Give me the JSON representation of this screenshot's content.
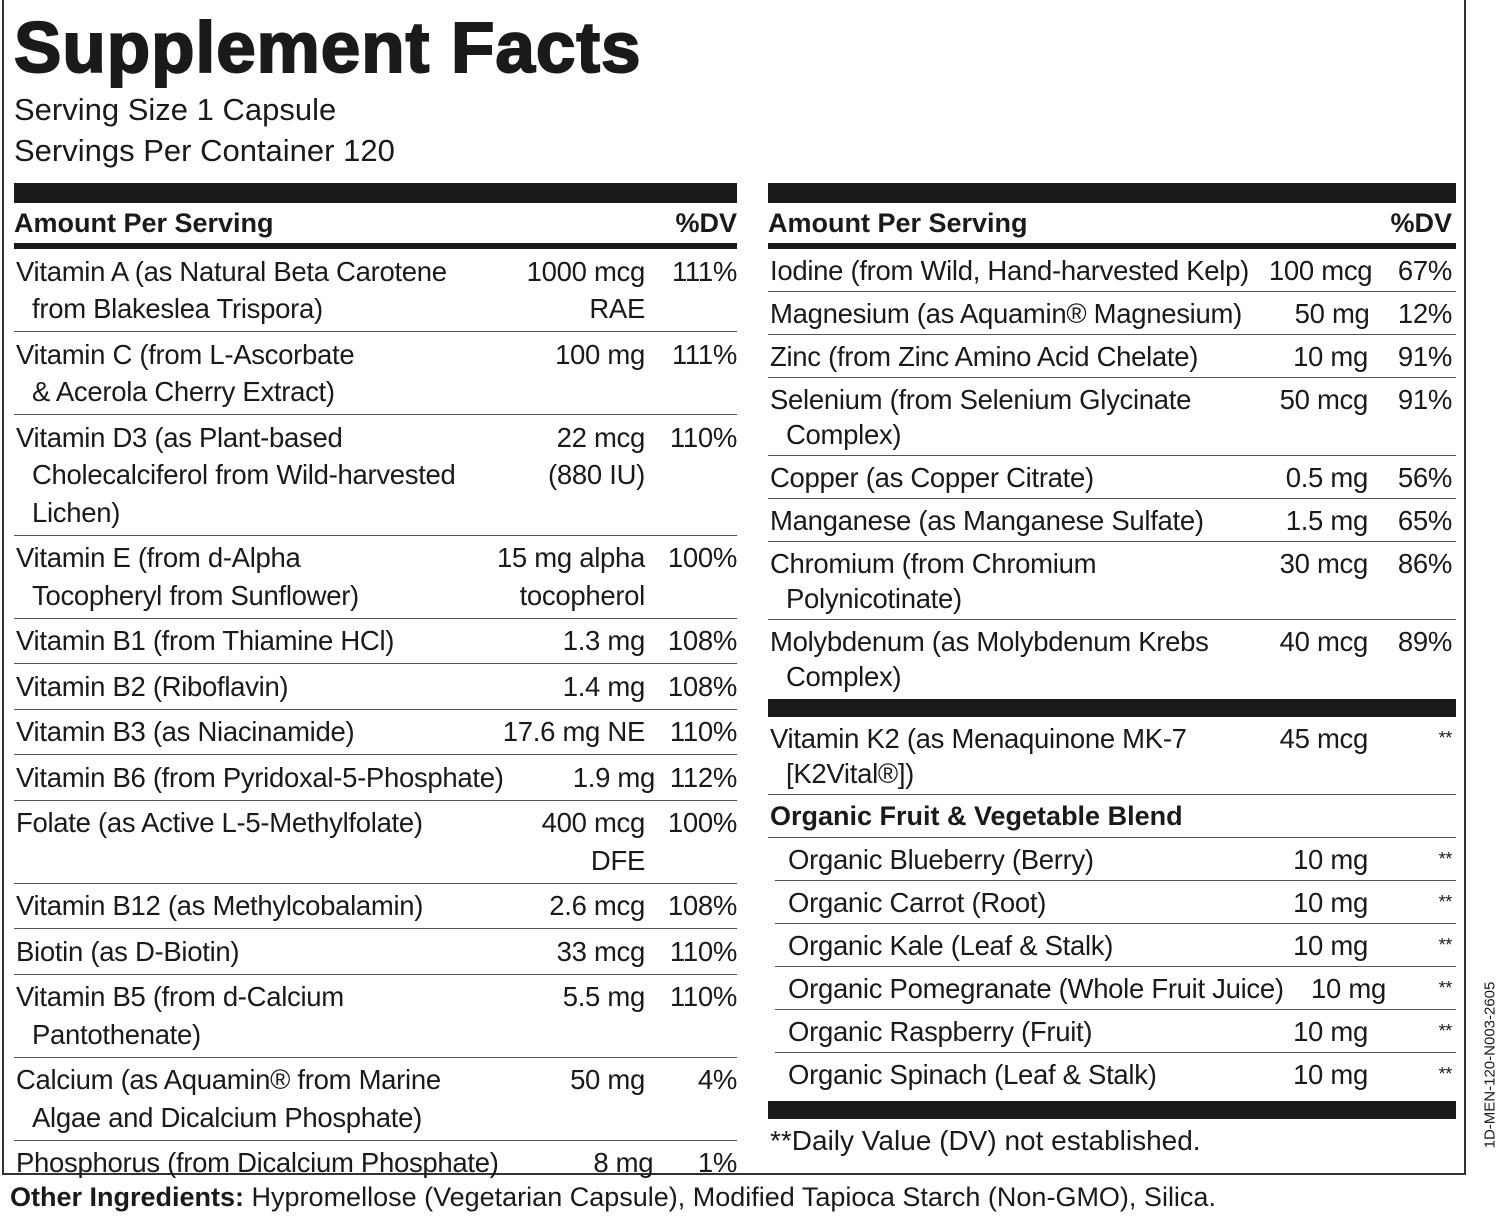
{
  "header": {
    "title": "Supplement Facts",
    "serving_size": "Serving Size 1 Capsule",
    "servings_per_container": "Servings Per Container 120"
  },
  "left_panel": {
    "column_headers": [
      "Amount Per Serving",
      "%DV"
    ],
    "rows": [
      {
        "name": [
          "Vitamin A (as Natural Beta Carotene",
          "from Blakeslea Trispora)"
        ],
        "amount": [
          "1000 mcg",
          "RAE"
        ],
        "dv": "111%"
      },
      {
        "name": [
          "Vitamin C (from L-Ascorbate",
          "& Acerola Cherry Extract)"
        ],
        "amount": [
          "100 mg"
        ],
        "dv": "111%"
      },
      {
        "name": [
          "Vitamin D3 (as Plant-based",
          "Cholecalciferol from Wild-harvested",
          "Lichen)"
        ],
        "amount": [
          "22 mcg",
          "(880 IU)"
        ],
        "dv": "110%"
      },
      {
        "name": [
          "Vitamin E (from d-Alpha",
          "Tocopheryl from Sunflower)"
        ],
        "amount": [
          "15 mg alpha",
          "tocopherol"
        ],
        "dv": "100%"
      },
      {
        "name": [
          "Vitamin B1 (from Thiamine HCl)"
        ],
        "amount": [
          "1.3 mg"
        ],
        "dv": "108%"
      },
      {
        "name": [
          "Vitamin B2 (Riboflavin)"
        ],
        "amount": [
          "1.4 mg"
        ],
        "dv": "108%"
      },
      {
        "name": [
          "Vitamin B3 (as Niacinamide)"
        ],
        "amount": [
          "17.6 mg NE"
        ],
        "dv": "110%"
      },
      {
        "name": [
          "Vitamin B6 (from Pyridoxal-5-Phosphate)"
        ],
        "amount": [
          "1.9 mg"
        ],
        "dv": "112%"
      },
      {
        "name": [
          "Folate (as Active L-5-Methylfolate)"
        ],
        "amount": [
          "400 mcg",
          "DFE"
        ],
        "dv": "100%"
      },
      {
        "name": [
          "Vitamin B12 (as Methylcobalamin)"
        ],
        "amount": [
          "2.6 mcg"
        ],
        "dv": "108%"
      },
      {
        "name": [
          "Biotin (as D-Biotin)"
        ],
        "amount": [
          "33 mcg"
        ],
        "dv": "110%"
      },
      {
        "name": [
          "Vitamin B5 (from d-Calcium",
          "Pantothenate)"
        ],
        "amount": [
          "5.5 mg"
        ],
        "dv": "110%"
      },
      {
        "name": [
          "Calcium (as Aquamin® from Marine",
          "Algae and Dicalcium Phosphate)"
        ],
        "amount": [
          "50 mg"
        ],
        "dv": "4%"
      },
      {
        "name": [
          "Phosphorus (from Dicalcium Phosphate)"
        ],
        "amount": [
          "8 mg"
        ],
        "dv": "1%"
      }
    ]
  },
  "right_panel": {
    "column_headers": [
      "Amount Per Serving",
      "%DV"
    ],
    "rows": [
      {
        "name": [
          "Iodine (from Wild, Hand-harvested Kelp)"
        ],
        "amount": [
          "100 mcg"
        ],
        "dv": "67%"
      },
      {
        "name": [
          "Magnesium (as Aquamin® Magnesium)"
        ],
        "amount": [
          "50 mg"
        ],
        "dv": "12%"
      },
      {
        "name": [
          "Zinc (from Zinc Amino Acid Chelate)"
        ],
        "amount": [
          "10 mg"
        ],
        "dv": "91%"
      },
      {
        "name": [
          "Selenium (from Selenium Glycinate",
          "Complex)"
        ],
        "amount": [
          "50 mcg"
        ],
        "dv": "91%"
      },
      {
        "name": [
          "Copper (as Copper Citrate)"
        ],
        "amount": [
          "0.5 mg"
        ],
        "dv": "56%"
      },
      {
        "name": [
          "Manganese (as Manganese Sulfate)"
        ],
        "amount": [
          "1.5 mg"
        ],
        "dv": "65%"
      },
      {
        "name": [
          "Chromium (from Chromium",
          "Polynicotinate)"
        ],
        "amount": [
          "30 mcg"
        ],
        "dv": "86%"
      },
      {
        "name": [
          "Molybdenum (as Molybdenum Krebs",
          "Complex)"
        ],
        "amount": [
          "40 mcg"
        ],
        "dv": "89%"
      }
    ],
    "other_rows": [
      {
        "name": [
          "Vitamin K2 (as Menaquinone MK-7",
          "[K2Vital®])"
        ],
        "amount": [
          "45 mcg"
        ],
        "dv": "**"
      }
    ],
    "blend": {
      "title": "Organic Fruit & Vegetable Blend",
      "rows": [
        {
          "name": [
            "Organic Blueberry (Berry)"
          ],
          "amount": [
            "10 mg"
          ],
          "dv": "**"
        },
        {
          "name": [
            "Organic Carrot (Root)"
          ],
          "amount": [
            "10 mg"
          ],
          "dv": "**"
        },
        {
          "name": [
            "Organic Kale (Leaf & Stalk)"
          ],
          "amount": [
            "10 mg"
          ],
          "dv": "**"
        },
        {
          "name": [
            "Organic Pomegranate (Whole Fruit Juice)"
          ],
          "amount": [
            "10 mg"
          ],
          "dv": "**"
        },
        {
          "name": [
            "Organic Raspberry (Fruit)"
          ],
          "amount": [
            "10 mg"
          ],
          "dv": "**"
        },
        {
          "name": [
            "Organic  Spinach (Leaf & Stalk)"
          ],
          "amount": [
            "10 mg"
          ],
          "dv": "**"
        }
      ]
    },
    "footnote": "**Daily Value (DV) not established."
  },
  "other_ingredients": {
    "label": "Other Ingredients:",
    "text": "Hypromellose (Vegetarian Capsule), Modified Tapioca Starch (Non-GMO), Silica."
  },
  "code": "1D-MEN-120-N003-2605"
}
